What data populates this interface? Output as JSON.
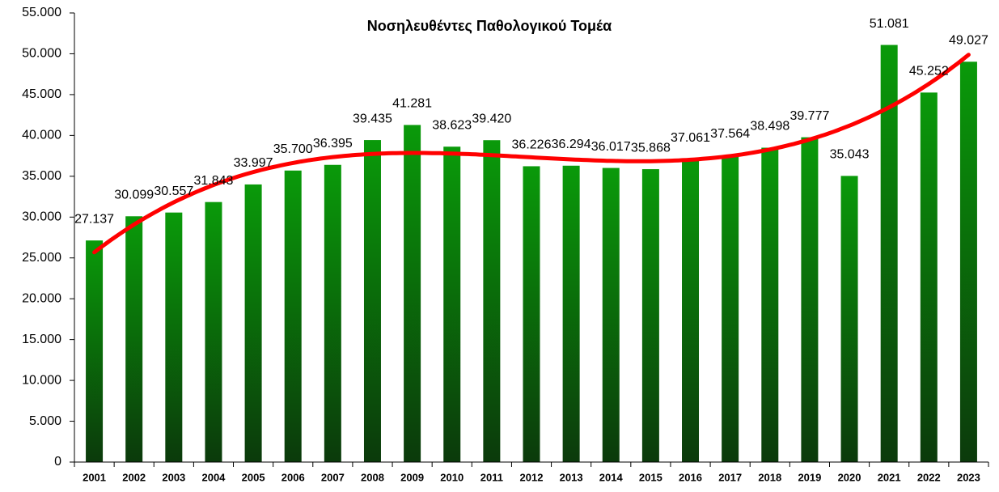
{
  "chart_data": {
    "type": "bar",
    "title": "Νοσηλευθέντες Παθολογικού Τομέα",
    "categories": [
      "2001",
      "2002",
      "2003",
      "2004",
      "2005",
      "2006",
      "2007",
      "2008",
      "2009",
      "2010",
      "2011",
      "2012",
      "2013",
      "2014",
      "2015",
      "2016",
      "2017",
      "2018",
      "2019",
      "2020",
      "2021",
      "2022",
      "2023"
    ],
    "values": [
      27137,
      30099,
      30557,
      31843,
      33997,
      35700,
      36395,
      39435,
      41281,
      38623,
      39420,
      36226,
      36294,
      36017,
      35868,
      37061,
      37564,
      38498,
      39777,
      35043,
      51081,
      45252,
      49027
    ],
    "value_labels": [
      "27.137",
      "30.099",
      "30.557",
      "31.843",
      "33.997",
      "35.700",
      "36.395",
      "39.435",
      "41.281",
      "38.623",
      "39.420",
      "36.226",
      "36.294",
      "36.017",
      "35.868",
      "37.061",
      "37.564",
      "38.498",
      "39.777",
      "35.043",
      "51.081",
      "45.252",
      "49.027"
    ],
    "color": "#0a9a0a",
    "trendline": true,
    "trendline_color": "#ff0000",
    "ylim": [
      0,
      55000
    ],
    "yticks": [
      0,
      {
        "value": 5000,
        "label": "5.000"
      },
      {
        "value": 10000,
        "label": "10.000"
      },
      {
        "value": 15000,
        "label": "15.000"
      },
      {
        "value": 20000,
        "label": "20.000"
      },
      {
        "value": 25000,
        "label": "25.000"
      },
      {
        "value": 30000,
        "label": "30.000"
      },
      {
        "value": 35000,
        "label": "35.000"
      },
      {
        "value": 40000,
        "label": "40.000"
      },
      {
        "value": 45000,
        "label": "45.000"
      },
      {
        "value": 50000,
        "label": "50.000"
      },
      {
        "value": 55000,
        "label": "55.000"
      }
    ],
    "grid": false
  }
}
